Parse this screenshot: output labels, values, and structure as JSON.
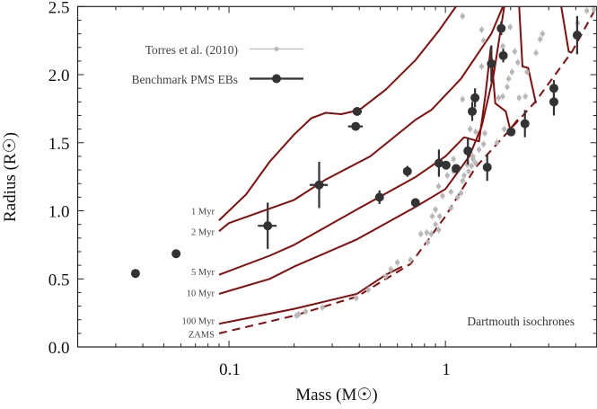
{
  "chart_data": {
    "type": "scatter",
    "xlabel": "Mass (M☉)",
    "ylabel": "Radius (R☉)",
    "xscale": "log",
    "xlim": [
      0.02,
      5
    ],
    "ylim": [
      0,
      2.5
    ],
    "xticks": [
      {
        "value": 0.1,
        "label": "0.1"
      },
      {
        "value": 1,
        "label": "1"
      }
    ],
    "yticks": [
      {
        "value": 0.0,
        "label": "0.0"
      },
      {
        "value": 0.5,
        "label": "0.5"
      },
      {
        "value": 1.0,
        "label": "1.0"
      },
      {
        "value": 1.5,
        "label": "1.5"
      },
      {
        "value": 2.0,
        "label": "2.0"
      },
      {
        "value": 2.5,
        "label": "2.5"
      }
    ],
    "grid": false,
    "legend_position": "top-left",
    "annotation": "Dartmouth isochrones",
    "colors": {
      "isochrone": "#8b0a0a",
      "torres": "#b8b8b8",
      "benchmark": "#333333"
    },
    "series": [
      {
        "name": "Torres et al. (2010)",
        "marker": "small-dot",
        "points": [
          [
            0.205,
            0.23
          ],
          [
            0.21,
            0.24
          ],
          [
            0.226,
            0.26
          ],
          [
            0.27,
            0.29
          ],
          [
            0.387,
            0.36
          ],
          [
            0.44,
            0.42
          ],
          [
            0.53,
            0.52
          ],
          [
            0.56,
            0.57
          ],
          [
            0.6,
            0.62
          ],
          [
            0.69,
            0.64
          ],
          [
            0.77,
            0.83
          ],
          [
            0.82,
            0.84
          ],
          [
            0.83,
            0.77
          ],
          [
            0.86,
            0.83
          ],
          [
            0.9,
            0.9
          ],
          [
            0.93,
            0.86
          ],
          [
            0.87,
            0.96
          ],
          [
            0.94,
            0.96
          ],
          [
            0.9,
            1.01
          ],
          [
            1.06,
            1.02
          ],
          [
            0.93,
            1.18
          ],
          [
            0.97,
            1.11
          ],
          [
            1.06,
            1.14
          ],
          [
            1.14,
            1.1
          ],
          [
            1.18,
            1.13
          ],
          [
            1.02,
            1.26
          ],
          [
            1.09,
            1.29
          ],
          [
            1.2,
            1.22
          ],
          [
            1.22,
            1.26
          ],
          [
            1.28,
            1.29
          ],
          [
            1.32,
            1.33
          ],
          [
            1.38,
            1.35
          ],
          [
            1.26,
            1.34
          ],
          [
            1.09,
            1.38
          ],
          [
            1.34,
            1.38
          ],
          [
            1.34,
            1.4
          ],
          [
            1.43,
            1.45
          ],
          [
            1.5,
            1.49
          ],
          [
            1.73,
            1.5
          ],
          [
            1.3,
            1.6
          ],
          [
            1.38,
            1.58
          ],
          [
            1.52,
            1.57
          ],
          [
            1.87,
            1.6
          ],
          [
            1.2,
            1.82
          ],
          [
            1.76,
            1.83
          ],
          [
            1.84,
            1.84
          ],
          [
            2.19,
            1.83
          ],
          [
            2.34,
            1.84
          ],
          [
            1.93,
            1.91
          ],
          [
            1.96,
            1.97
          ],
          [
            2.03,
            2.02
          ],
          [
            2.38,
            2.02
          ],
          [
            1.47,
            2.06
          ],
          [
            2.16,
            2.09
          ],
          [
            2.09,
            2.17
          ],
          [
            2.62,
            2.16
          ],
          [
            1.84,
            2.21
          ],
          [
            1.5,
            2.25
          ],
          [
            2.74,
            2.26
          ],
          [
            2.81,
            2.3
          ],
          [
            1.47,
            2.33
          ],
          [
            1.99,
            2.35
          ],
          [
            4.08,
            2.38
          ],
          [
            1.2,
            2.43
          ],
          [
            4.5,
            2.47
          ],
          [
            4.85,
            2.48
          ]
        ]
      },
      {
        "name": "Benchmark PMS EBs",
        "marker": "large-dot",
        "points": [
          {
            "m": 0.037,
            "r": 0.54,
            "merr": 0,
            "rerr": 0.01
          },
          {
            "m": 0.057,
            "r": 0.685,
            "merr": 0,
            "rerr": 0.01
          },
          {
            "m": 0.151,
            "r": 0.89,
            "merr": 0.015,
            "rerr": 0.17
          },
          {
            "m": 0.261,
            "r": 1.19,
            "merr": 0.025,
            "rerr": 0.17
          },
          {
            "m": 0.391,
            "r": 1.73,
            "merr": 0.02,
            "rerr": 0.02
          },
          {
            "m": 0.385,
            "r": 1.62,
            "merr": 0.03,
            "rerr": 0.02
          },
          {
            "m": 0.496,
            "r": 1.1,
            "merr": 0,
            "rerr": 0.05
          },
          {
            "m": 0.667,
            "r": 1.29,
            "merr": 0,
            "rerr": 0.04
          },
          {
            "m": 0.727,
            "r": 1.06,
            "merr": 0,
            "rerr": 0
          },
          {
            "m": 0.933,
            "r": 1.35,
            "merr": 0,
            "rerr": 0.1
          },
          {
            "m": 1.007,
            "r": 1.335,
            "merr": 0,
            "rerr": 0
          },
          {
            "m": 1.12,
            "r": 1.31,
            "merr": 0,
            "rerr": 0
          },
          {
            "m": 1.27,
            "r": 1.44,
            "merr": 0,
            "rerr": 0.1
          },
          {
            "m": 1.33,
            "r": 1.73,
            "merr": 0,
            "rerr": 0.07
          },
          {
            "m": 1.37,
            "r": 1.83,
            "merr": 0,
            "rerr": 0.07
          },
          {
            "m": 1.56,
            "r": 1.32,
            "merr": 0,
            "rerr": 0.1
          },
          {
            "m": 1.63,
            "r": 2.08,
            "merr": 0,
            "rerr": 0.135
          },
          {
            "m": 1.81,
            "r": 2.34,
            "merr": 0,
            "rerr": 0.05
          },
          {
            "m": 1.85,
            "r": 2.14,
            "merr": 0,
            "rerr": 0.05
          },
          {
            "m": 2.01,
            "r": 1.58,
            "merr": 0,
            "rerr": 0
          },
          {
            "m": 2.33,
            "r": 1.64,
            "merr": 0,
            "rerr": 0.1
          },
          {
            "m": 3.17,
            "r": 1.9,
            "merr": 0,
            "rerr": 0.06
          },
          {
            "m": 3.17,
            "r": 1.8,
            "merr": 0,
            "rerr": 0.1
          },
          {
            "m": 4.06,
            "r": 2.29,
            "merr": 0,
            "rerr": 0.14
          }
        ]
      }
    ],
    "isochrones": [
      {
        "name": "1 Myr",
        "style": "solid",
        "points": [
          [
            0.09,
            0.93
          ],
          [
            0.12,
            1.12
          ],
          [
            0.154,
            1.36
          ],
          [
            0.2,
            1.56
          ],
          [
            0.24,
            1.68
          ],
          [
            0.28,
            1.72
          ],
          [
            0.33,
            1.71
          ],
          [
            0.4,
            1.74
          ],
          [
            0.53,
            1.89
          ],
          [
            0.73,
            2.11
          ],
          [
            0.94,
            2.33
          ],
          [
            1.14,
            2.52
          ]
        ]
      },
      {
        "name": "2 Myr",
        "style": "solid",
        "points": [
          [
            0.09,
            0.85
          ],
          [
            0.1,
            0.91
          ],
          [
            0.2,
            1.08
          ],
          [
            0.28,
            1.23
          ],
          [
            0.45,
            1.4
          ],
          [
            0.73,
            1.67
          ],
          [
            0.86,
            1.74
          ],
          [
            1.18,
            1.97
          ],
          [
            1.63,
            2.3
          ],
          [
            1.9,
            2.55
          ],
          [
            3.3,
            2.6
          ],
          [
            3.43,
            2.5
          ],
          [
            3.71,
            2.17
          ],
          [
            3.83,
            2.16
          ]
        ]
      },
      {
        "name": "5 Myr",
        "style": "solid",
        "points": [
          [
            0.09,
            0.53
          ],
          [
            0.154,
            0.67
          ],
          [
            0.2,
            0.75
          ],
          [
            0.39,
            1.01
          ],
          [
            0.73,
            1.25
          ],
          [
            1.0,
            1.4
          ],
          [
            1.22,
            1.54
          ],
          [
            1.43,
            1.51
          ],
          [
            1.53,
            1.85
          ],
          [
            1.62,
            2.2
          ],
          [
            1.7,
            1.79
          ],
          [
            1.9,
            1.73
          ],
          [
            1.99,
            1.6
          ],
          [
            2.16,
            1.67
          ]
        ]
      },
      {
        "name": "10 Myr",
        "style": "solid",
        "points": [
          [
            0.09,
            0.39
          ],
          [
            0.154,
            0.5
          ],
          [
            0.2,
            0.59
          ],
          [
            0.39,
            0.79
          ],
          [
            0.73,
            1.03
          ],
          [
            1.0,
            1.16
          ],
          [
            1.29,
            1.4
          ],
          [
            1.47,
            1.62
          ],
          [
            1.67,
            2.0
          ],
          [
            1.87,
            2.5
          ],
          [
            2.0,
            2.6
          ],
          [
            2.19,
            2.5
          ],
          [
            2.27,
            2.06
          ],
          [
            2.41,
            2.05
          ],
          [
            2.62,
            1.79
          ]
        ]
      },
      {
        "name": "100 Myr",
        "style": "solid",
        "points": [
          [
            0.09,
            0.17
          ],
          [
            0.2,
            0.28
          ],
          [
            0.39,
            0.39
          ],
          [
            0.53,
            0.53
          ],
          [
            0.63,
            0.59
          ]
        ]
      },
      {
        "name": "ZAMS",
        "style": "dashed",
        "points": [
          [
            0.09,
            0.1
          ],
          [
            0.2,
            0.23
          ],
          [
            0.39,
            0.37
          ],
          [
            0.69,
            0.61
          ],
          [
            1.0,
            0.96
          ],
          [
            1.38,
            1.32
          ],
          [
            2.0,
            1.6
          ],
          [
            2.6,
            1.8
          ],
          [
            3.85,
            2.17
          ],
          [
            5.0,
            2.5
          ]
        ]
      }
    ]
  }
}
